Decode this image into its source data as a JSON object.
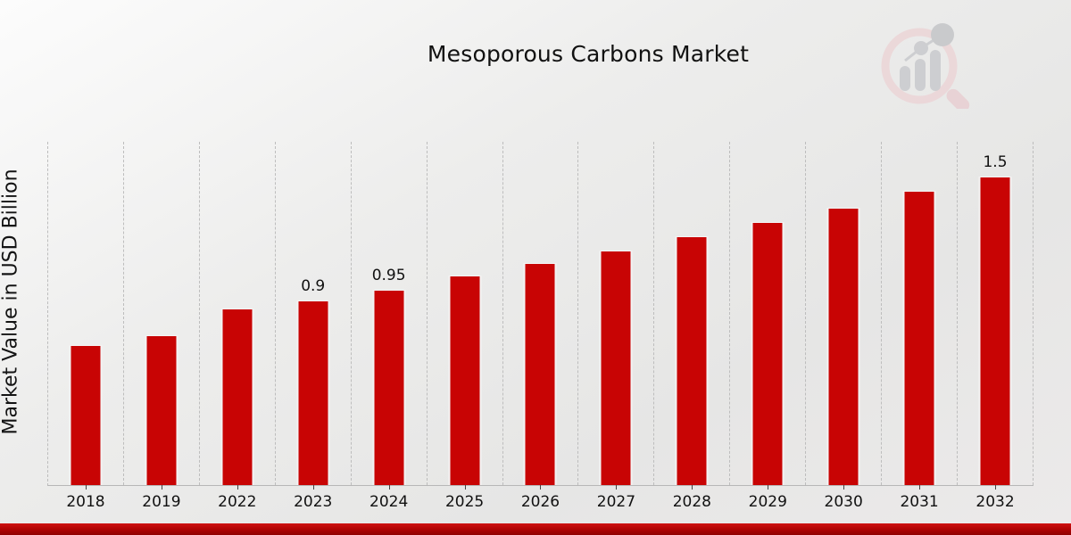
{
  "header": {
    "title": "Mesoporous Carbons Market"
  },
  "icons": {
    "watermark_logo": "magnifier-bar-chart-logo"
  },
  "colors": {
    "bar": "#c80404",
    "banner": "#b30505",
    "background": "#e9e9e8",
    "gridline": "#bdbdbd",
    "logo_pink": "#ecd5d7",
    "logo_gray": "#c9cacd"
  },
  "chart_data": {
    "type": "bar",
    "title": "Mesoporous Carbons Market",
    "xlabel": "",
    "ylabel": "Market Value in USD Billion",
    "categories": [
      "2018",
      "2019",
      "2022",
      "2023",
      "2024",
      "2025",
      "2026",
      "2027",
      "2028",
      "2029",
      "2030",
      "2031",
      "2032"
    ],
    "values": [
      0.68,
      0.73,
      0.86,
      0.9,
      0.95,
      1.02,
      1.08,
      1.14,
      1.21,
      1.28,
      1.35,
      1.43,
      1.5
    ],
    "data_labels": [
      "",
      "",
      "",
      "0.9",
      "0.95",
      "",
      "",
      "",
      "",
      "",
      "",
      "",
      "1.5"
    ],
    "ylim": [
      0,
      1.67
    ],
    "grid": "vertical-dashed",
    "legend": "none",
    "bar_color": "#c80404",
    "units": "USD Billion"
  }
}
